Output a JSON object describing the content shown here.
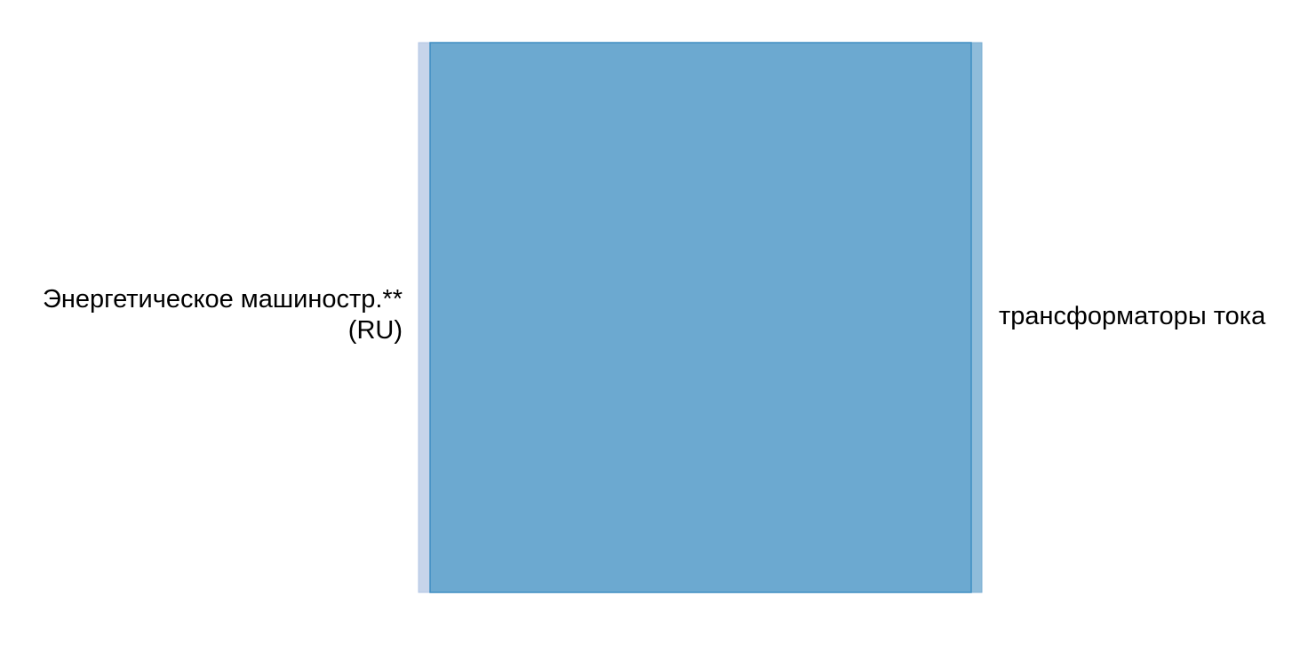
{
  "chart_data": {
    "type": "sankey",
    "nodes": [
      {
        "label_lines": [
          "Энергетическое машиностр.**",
          "(RU)"
        ],
        "side": "left",
        "color": "#c6d4ea"
      },
      {
        "label_lines": [
          "трансформаторы тока"
        ],
        "side": "right",
        "color": "#8fbcda"
      }
    ],
    "links": [
      {
        "source": 0,
        "target": 1,
        "value": 1,
        "color": "#5fa2cc"
      }
    ]
  }
}
